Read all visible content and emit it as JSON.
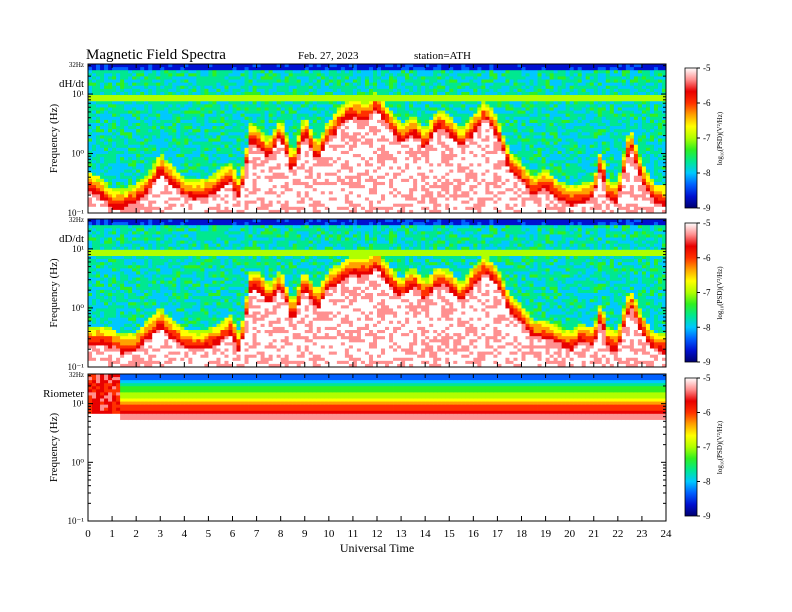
{
  "header": {
    "title": "Magnetic  Field  Spectra",
    "date": "Feb. 27, 2023",
    "station": "station=ATH"
  },
  "colors": {
    "scale": [
      "#000070",
      "#0010d0",
      "#0060ff",
      "#00c8ff",
      "#00e890",
      "#30f020",
      "#b0ff00",
      "#ffff00",
      "#ffa000",
      "#ff3000",
      "#e80000",
      "#ff9090",
      "#ffffff"
    ]
  },
  "chart_data": [
    {
      "type": "heatmap",
      "panel": "dH/dt",
      "ylabel": "Frequency  (Hz)",
      "ytick_labels": [
        "10⁻¹",
        "10⁰",
        "10¹",
        "32Hz"
      ],
      "ylim_hz": [
        0.1,
        32
      ],
      "yscale": "log",
      "colorbar": {
        "label": "log₁₀(PSD)(V²/Hz)",
        "range": [
          -9,
          -5
        ],
        "ticks": [
          "-9",
          "-8",
          "-7",
          "-6",
          "-5"
        ]
      },
      "contour_log10_hz": [
        [
          0,
          -0.65
        ],
        [
          0.5,
          -0.75
        ],
        [
          1,
          -0.95
        ],
        [
          1.5,
          -0.95
        ],
        [
          2,
          -0.85
        ],
        [
          2.5,
          -0.7
        ],
        [
          3,
          -0.35
        ],
        [
          3.5,
          -0.55
        ],
        [
          4,
          -0.75
        ],
        [
          4.5,
          -0.8
        ],
        [
          5,
          -0.75
        ],
        [
          5.5,
          -0.6
        ],
        [
          6,
          -0.5
        ],
        [
          6.2,
          -0.8
        ],
        [
          6.5,
          -0.5
        ],
        [
          6.7,
          0.15
        ],
        [
          7,
          0.1
        ],
        [
          7.5,
          -0.1
        ],
        [
          8,
          0.25
        ],
        [
          8.5,
          -0.35
        ],
        [
          9,
          0.3
        ],
        [
          9.5,
          -0.15
        ],
        [
          10,
          0.2
        ],
        [
          10.5,
          0.45
        ],
        [
          11,
          0.6
        ],
        [
          11.5,
          0.5
        ],
        [
          12,
          0.7
        ],
        [
          12.5,
          0.4
        ],
        [
          13,
          0.15
        ],
        [
          13.5,
          0.3
        ],
        [
          14,
          0.05
        ],
        [
          14.5,
          0.4
        ],
        [
          15,
          0.3
        ],
        [
          15.5,
          0.05
        ],
        [
          16,
          0.3
        ],
        [
          16.5,
          0.55
        ],
        [
          17,
          0.25
        ],
        [
          17.5,
          -0.3
        ],
        [
          18,
          -0.5
        ],
        [
          18.5,
          -0.75
        ],
        [
          19,
          -0.6
        ],
        [
          19.5,
          -0.8
        ],
        [
          20,
          -0.9
        ],
        [
          20.5,
          -0.85
        ],
        [
          21,
          -0.8
        ],
        [
          21.3,
          -0.25
        ],
        [
          21.6,
          -0.8
        ],
        [
          22,
          -0.85
        ],
        [
          22.5,
          0.1
        ],
        [
          23,
          -0.5
        ],
        [
          23.5,
          -0.85
        ],
        [
          24,
          -0.9
        ]
      ]
    },
    {
      "type": "heatmap",
      "panel": "dD/dt",
      "ylabel": "Frequency  (Hz)",
      "ytick_labels": [
        "10⁻¹",
        "10⁰",
        "10¹",
        "32Hz"
      ],
      "ylim_hz": [
        0.1,
        32
      ],
      "yscale": "log",
      "colorbar": {
        "label": "log₁₀(PSD)(V²/Hz)",
        "range": [
          -9,
          -5
        ],
        "ticks": [
          "-9",
          "-8",
          "-7",
          "-6",
          "-5"
        ]
      },
      "contour_log10_hz": [
        [
          0,
          -0.7
        ],
        [
          0.5,
          -0.65
        ],
        [
          1,
          -0.7
        ],
        [
          1.5,
          -0.8
        ],
        [
          2,
          -0.75
        ],
        [
          2.5,
          -0.55
        ],
        [
          3,
          -0.35
        ],
        [
          3.5,
          -0.55
        ],
        [
          4,
          -0.7
        ],
        [
          4.5,
          -0.75
        ],
        [
          5,
          -0.7
        ],
        [
          5.5,
          -0.6
        ],
        [
          6,
          -0.45
        ],
        [
          6.2,
          -0.8
        ],
        [
          6.5,
          -0.45
        ],
        [
          6.7,
          0.25
        ],
        [
          7,
          0.3
        ],
        [
          7.5,
          0.05
        ],
        [
          8,
          0.3
        ],
        [
          8.5,
          -0.25
        ],
        [
          9,
          0.3
        ],
        [
          9.5,
          -0.05
        ],
        [
          10,
          0.3
        ],
        [
          10.5,
          0.4
        ],
        [
          11,
          0.55
        ],
        [
          11.5,
          0.5
        ],
        [
          12,
          0.65
        ],
        [
          12.5,
          0.35
        ],
        [
          13,
          0.15
        ],
        [
          13.5,
          0.35
        ],
        [
          14,
          0.1
        ],
        [
          14.5,
          0.35
        ],
        [
          15,
          0.3
        ],
        [
          15.5,
          0.05
        ],
        [
          16,
          0.35
        ],
        [
          16.5,
          0.55
        ],
        [
          17,
          0.35
        ],
        [
          17.5,
          -0.1
        ],
        [
          18,
          -0.3
        ],
        [
          18.5,
          -0.55
        ],
        [
          19,
          -0.55
        ],
        [
          19.5,
          -0.65
        ],
        [
          20,
          -0.75
        ],
        [
          20.5,
          -0.6
        ],
        [
          21,
          -0.7
        ],
        [
          21.3,
          -0.2
        ],
        [
          21.6,
          -0.7
        ],
        [
          22,
          -0.75
        ],
        [
          22.5,
          0.0
        ],
        [
          23,
          -0.45
        ],
        [
          23.5,
          -0.75
        ],
        [
          24,
          -0.8
        ]
      ]
    },
    {
      "type": "heatmap",
      "panel": "Riometer",
      "ylabel": "Frequency  (Hz)",
      "ytick_labels": [
        "10⁻¹",
        "10⁰",
        "10¹",
        "32Hz"
      ],
      "ylim_hz": [
        0.1,
        32
      ],
      "yscale": "log",
      "colorbar": {
        "label": "log₁₀(PSD)(V²/Hz)",
        "range": [
          -9,
          -5
        ],
        "ticks": [
          "-9",
          "-8",
          "-7",
          "-6",
          "-5"
        ]
      },
      "band_log10_hz": {
        "from_hour": 1.4,
        "top": 1.0,
        "bottom": 0.72
      }
    }
  ],
  "x_axis": {
    "label": "Universal Time",
    "xlim": [
      0,
      24
    ],
    "ticks": [
      "0",
      "1",
      "2",
      "3",
      "4",
      "5",
      "6",
      "7",
      "8",
      "9",
      "10",
      "11",
      "12",
      "13",
      "14",
      "15",
      "16",
      "17",
      "18",
      "19",
      "20",
      "21",
      "22",
      "23",
      "24"
    ]
  }
}
